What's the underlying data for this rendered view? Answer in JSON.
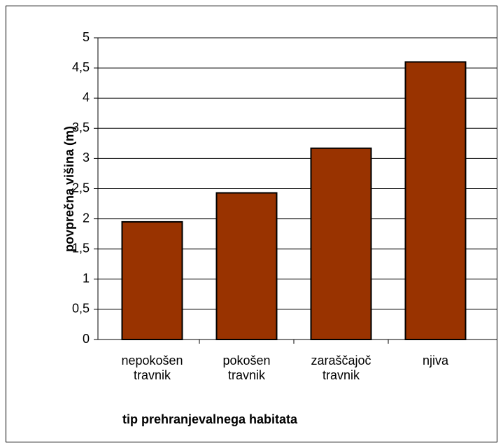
{
  "chart_data": {
    "type": "bar",
    "y_label": "povprečna višina (m)",
    "x_label": "tip prehranjevalnega habitata",
    "categories": [
      "nepokošen travnik",
      "pokošen travnik",
      "zaraščajoč travnik",
      "njiva"
    ],
    "values": [
      1.95,
      2.43,
      3.17,
      4.6
    ],
    "color": "#993300",
    "ylim": [
      0,
      5
    ],
    "yticks": [
      0,
      {
        "value": 0.5,
        "label": "0,5"
      },
      1,
      {
        "value": 1.5,
        "label": "1,5"
      },
      2,
      {
        "value": 2.5,
        "label": "2,5"
      },
      3,
      {
        "value": 3.5,
        "label": "3,5"
      },
      4,
      {
        "value": 4.5,
        "label": "4,5"
      },
      5
    ],
    "grid": true
  }
}
